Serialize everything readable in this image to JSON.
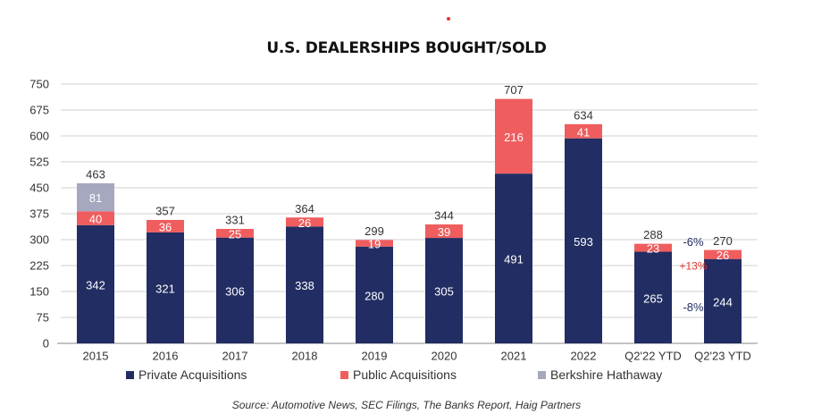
{
  "title": "U.S. DEALERSHIPS BOUGHT/SOLD",
  "source": "Source: Automotive News, SEC Filings, The Banks Report, Haig Partners",
  "colors": {
    "private": "#222d63",
    "public": "#f05d5e",
    "berkshire": "#a5a8bf",
    "grid": "#d0d0d0",
    "axis": "#888888",
    "pct_positive": "#e0352b",
    "pct_negative": "#222d63"
  },
  "legend": [
    {
      "label": "Private Acquisitions",
      "color": "#222d63"
    },
    {
      "label": "Public Acquisitions",
      "color": "#f05d5e"
    },
    {
      "label": "Berkshire Hathaway",
      "color": "#a5a8bf"
    }
  ],
  "chart_data": {
    "type": "bar",
    "stacked": true,
    "categories": [
      "2015",
      "2016",
      "2017",
      "2018",
      "2019",
      "2020",
      "2021",
      "2022",
      "Q2'22 YTD",
      "Q2'23 YTD"
    ],
    "series": [
      {
        "name": "Private Acquisitions",
        "values": [
          342,
          321,
          306,
          338,
          280,
          305,
          491,
          593,
          265,
          244
        ]
      },
      {
        "name": "Public Acquisitions",
        "values": [
          40,
          36,
          25,
          26,
          19,
          39,
          216,
          41,
          23,
          26
        ]
      },
      {
        "name": "Berkshire Hathaway",
        "values": [
          81,
          0,
          0,
          0,
          0,
          0,
          0,
          0,
          0,
          0
        ]
      }
    ],
    "totals": [
      463,
      357,
      331,
      364,
      299,
      344,
      707,
      634,
      288,
      270
    ],
    "ylim": [
      0,
      750
    ],
    "yticks": [
      0,
      75,
      150,
      225,
      300,
      375,
      450,
      525,
      600,
      675,
      750
    ],
    "grid": true,
    "legend_position": "bottom",
    "annotations": [
      {
        "text": "-6%",
        "kind": "total",
        "sign": "negative"
      },
      {
        "text": "+13%",
        "kind": "public",
        "sign": "positive"
      },
      {
        "text": "-8%",
        "kind": "private",
        "sign": "negative"
      }
    ]
  }
}
